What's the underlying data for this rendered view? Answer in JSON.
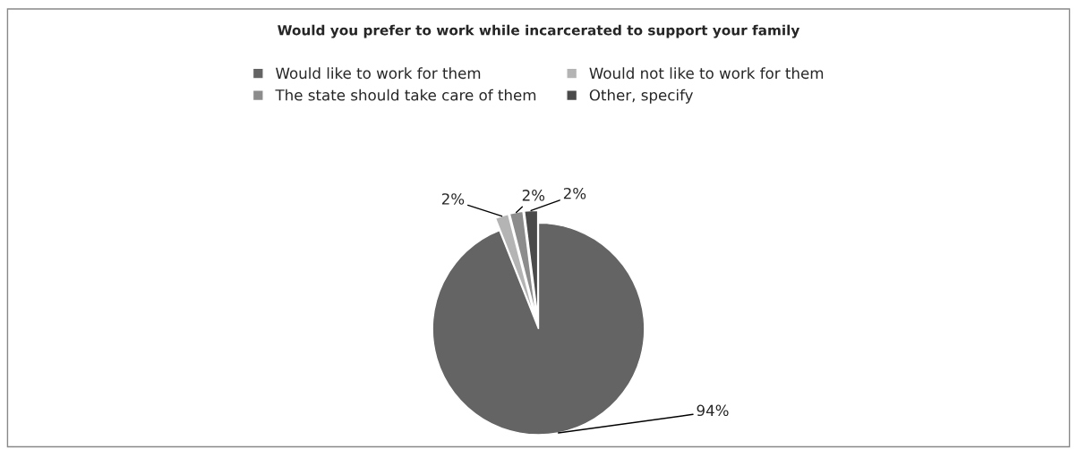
{
  "chart_data": {
    "type": "pie",
    "title": "Would you prefer to work while incarcerated to support your family",
    "categories": [
      "Would like to work for them",
      "Would not like to work for them",
      "The state should take care of them",
      "Other, specify"
    ],
    "values": [
      94,
      2,
      2,
      2
    ],
    "colors": [
      "#646464",
      "#b4b4b4",
      "#8c8c8c",
      "#4a4a4a"
    ],
    "value_labels": [
      "94%",
      "2%",
      "2%",
      "2%"
    ],
    "legend": "top"
  }
}
